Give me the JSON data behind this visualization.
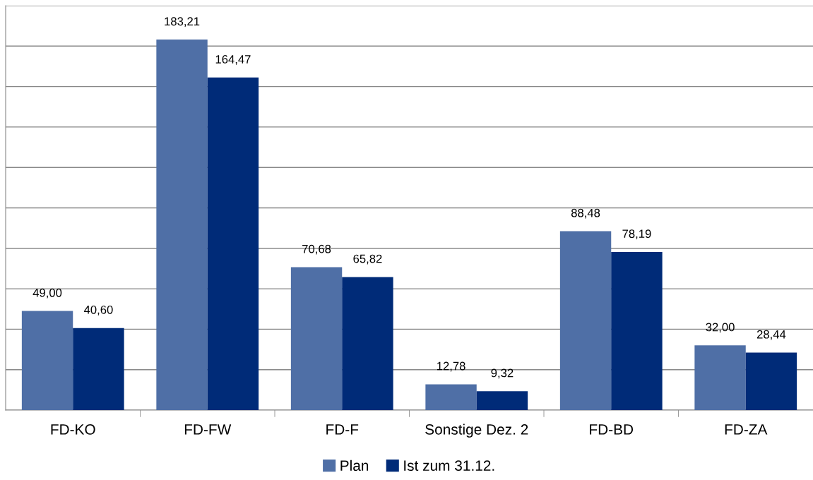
{
  "chart_data": {
    "type": "bar",
    "categories": [
      "FD-KO",
      "FD-FW",
      "FD-F",
      "Sonstige Dez. 2",
      "FD-BD",
      "FD-ZA"
    ],
    "series": [
      {
        "name": "Plan",
        "color": "#4f6fa6",
        "values": [
          49.0,
          183.21,
          70.68,
          12.78,
          88.48,
          32.0
        ],
        "value_labels": [
          "49,00",
          "183,21",
          "70,68",
          "12,78",
          "88,48",
          "32,00"
        ]
      },
      {
        "name": "Ist zum 31.12.",
        "color": "#002b78",
        "values": [
          40.6,
          164.47,
          65.82,
          9.32,
          78.19,
          28.44
        ],
        "value_labels": [
          "40,60",
          "164,47",
          "65,82",
          "9,32",
          "78,19",
          "28,44"
        ]
      }
    ],
    "ylim": [
      0,
      200
    ],
    "yticks": [
      {
        "value": 0,
        "label": null
      },
      {
        "value": 20,
        "label": null
      },
      {
        "value": 40,
        "label": null
      },
      {
        "value": 60,
        "label": null
      },
      {
        "value": 80,
        "label": null
      },
      {
        "value": 100,
        "label": null
      },
      {
        "value": 120,
        "label": null
      },
      {
        "value": 140,
        "label": null
      },
      {
        "value": 160,
        "label": null
      },
      {
        "value": 180,
        "label": null
      },
      {
        "value": 200,
        "label": null
      }
    ],
    "grid": "y",
    "legend": "bottom",
    "tick_labels": "x"
  }
}
